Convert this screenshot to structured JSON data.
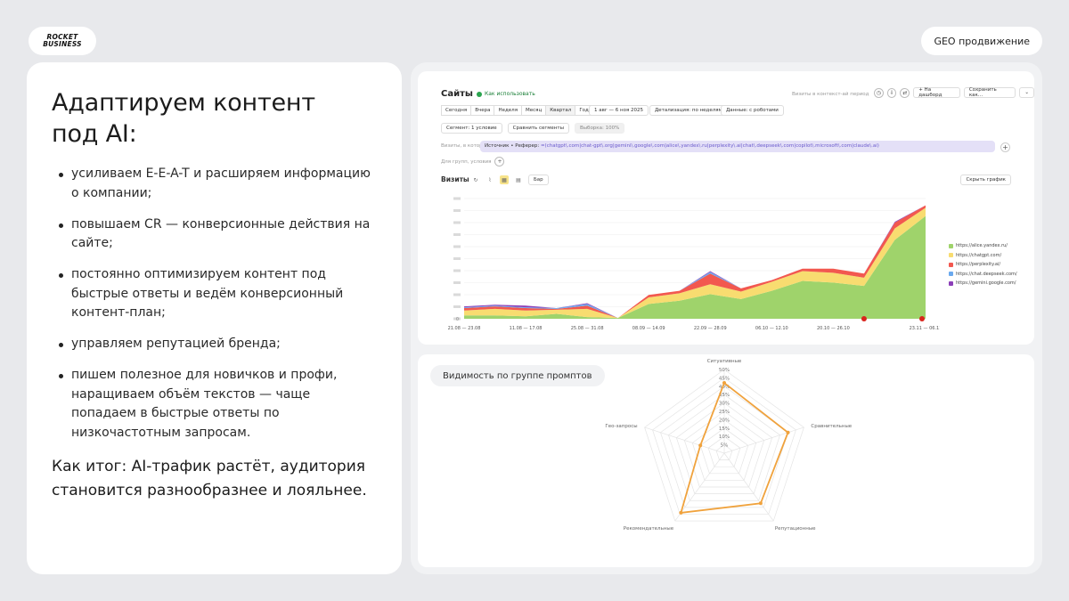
{
  "logo": {
    "line1": "ROCKET",
    "line2": "BUSINESS"
  },
  "top_pill": "GEO продвижение",
  "left": {
    "heading": "Адаптируем контент под AI:",
    "bullets": [
      "усиливаем E-E-A-T и расширяем информацию о компании;",
      "повышаем CR — конверсионные действия на сайте;",
      "постоянно оптимизируем контент под быстрые ответы и ведём конверсионный контент-план;",
      "управляем репутацией бренда;",
      "пишем полезное для новичков и профи, наращиваем объём текстов — чаще попадаем в быстрые ответы по низкочастотным запросам."
    ],
    "summary": "Как итог: AI-трафик растёт, аудитория становится разнообразнее и лояльнее."
  },
  "metrica": {
    "title": "Сайты",
    "howto": "Как использовать",
    "hint": "Визиты в контекст-ай период",
    "add_dashboard": "+ На дашборд",
    "save_as": "Сохранить как...",
    "periods": [
      "Сегодня",
      "Вчера",
      "Неделя",
      "Месяц",
      "Квартал",
      "Год"
    ],
    "period_range": "1 авг — 6 ноя 2025",
    "detail_a": "Детализация: по неделям",
    "detail_b": "Данные: с роботами",
    "segment": "Сегмент: 1 условие",
    "compare": "Сравнить сегменты",
    "sample": "Выборка: 100%",
    "filter_label": "Визиты, в которых",
    "filter_source": "Источник • Реферер:",
    "filter_value": " =(chatgpt\\.com|chat-gpt\\.org|gemini\\.google\\.com|alice\\.yandex\\.ru|perplexity\\.ai|chat\\.deepseek\\.com|copilot\\.microsoft\\.com|claude\\.ai)",
    "group_line": "Для групп, условия",
    "visits": "Визиты",
    "hide_chart": "Скрыть график",
    "bar_select": "Бар"
  },
  "chart_data": {
    "type": "area",
    "x_tick_labels": [
      "21.08 — 23.08",
      "11.08 — 17.08",
      "25.08 — 31.08",
      "08.09 — 14.09",
      "22.09 — 28.09",
      "06.10 — 12.10",
      "20.10 — 26.10",
      "23.11 — 06.11"
    ],
    "series": [
      {
        "name": "https://alice.yandex.ru/",
        "color": "#9fd36b",
        "values": [
          4,
          4,
          3,
          6,
          2,
          1,
          18,
          22,
          30,
          24,
          34,
          46,
          44,
          40,
          96,
          125
        ]
      },
      {
        "name": "https://chatgpt.com/",
        "color": "#f8dc70",
        "values": [
          6,
          8,
          7,
          5,
          10,
          0,
          8,
          9,
          12,
          9,
          11,
          12,
          12,
          10,
          14,
          10
        ]
      },
      {
        "name": "https://perplexity.ai/",
        "color": "#f2584f",
        "values": [
          3,
          3,
          3,
          1,
          4,
          0,
          3,
          3,
          13,
          4,
          2,
          3,
          5,
          5,
          7,
          3
        ]
      },
      {
        "name": "https://chat.deepseek.com/",
        "color": "#6aa9ee",
        "values": [
          1,
          1,
          1,
          1,
          2,
          0,
          0,
          0,
          2,
          0,
          0,
          0,
          0,
          0,
          0,
          0
        ]
      },
      {
        "name": "https://gemini.google.com/",
        "color": "#8b3fb8",
        "values": [
          1,
          1,
          2,
          0,
          1,
          0,
          0,
          0,
          1,
          0,
          0,
          0,
          0,
          0,
          1,
          0
        ]
      }
    ],
    "y_labels": [
      "0"
    ]
  },
  "radar": {
    "title": "Видимость по группе промптов",
    "axes": [
      "Ситуативные",
      "Сравнительные",
      "Репутационные",
      "Рекомендательные",
      "Гео-запросы"
    ],
    "values": [
      42,
      40,
      37,
      44,
      15
    ],
    "ring_labels": [
      "5%",
      "10%",
      "15%",
      "20%",
      "25%",
      "30%",
      "35%",
      "40%",
      "45%",
      "50%"
    ],
    "max": 50,
    "color": "#f0a23c"
  }
}
